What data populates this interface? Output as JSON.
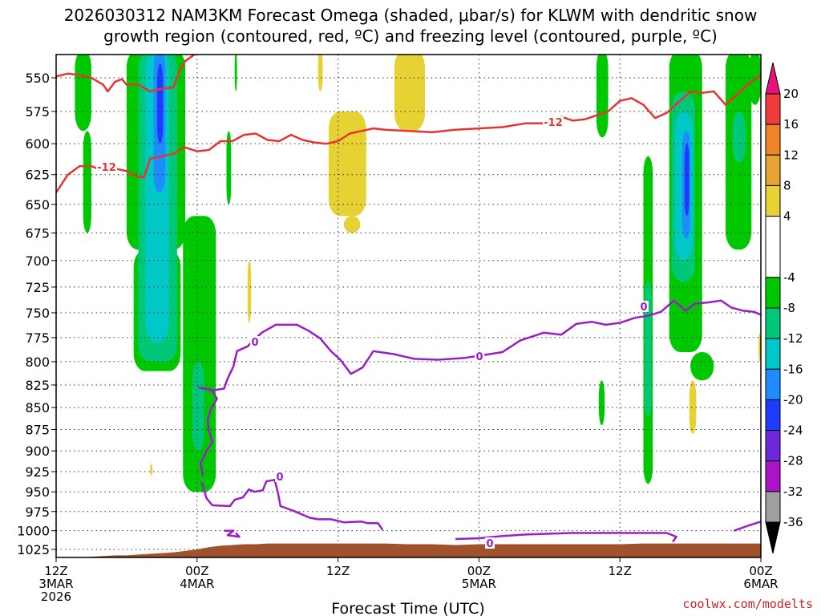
{
  "chart_data": {
    "type": "heatmap",
    "title_line1": "2026030312 NAM3KM Forecast Omega (shaded, μbar/s) for KLWM with dendritic snow",
    "title_line2": "growth region (contoured, red, ºC) and freezing level (contoured, purple, ºC)",
    "xlabel": "Forecast Time (UTC)",
    "credit": "coolwx.com/modelts",
    "x_range_hours": [
      0,
      60
    ],
    "x_ticks": [
      {
        "hour": 0,
        "lines": [
          "12Z",
          "3MAR",
          "2026"
        ]
      },
      {
        "hour": 12,
        "lines": [
          "00Z",
          "4MAR"
        ]
      },
      {
        "hour": 24,
        "lines": [
          "12Z"
        ]
      },
      {
        "hour": 36,
        "lines": [
          "00Z",
          "5MAR"
        ]
      },
      {
        "hour": 48,
        "lines": [
          "12Z"
        ]
      },
      {
        "hour": 60,
        "lines": [
          "00Z",
          "6MAR"
        ]
      }
    ],
    "y_range_hpa": [
      530,
      1040
    ],
    "y_ticks": [
      "550",
      "575",
      "600",
      "625",
      "650",
      "675",
      "700",
      "725",
      "750",
      "775",
      "800",
      "825",
      "850",
      "875",
      "900",
      "925",
      "950",
      "975",
      "1000",
      "1025"
    ],
    "colorbar": {
      "labels": [
        "20",
        "16",
        "12",
        "8",
        "4",
        "-4",
        "-8",
        "-12",
        "-16",
        "-20",
        "-24",
        "-28",
        "-32",
        "-36"
      ],
      "bins": [
        {
          "lo": 16,
          "hi": 20,
          "color": "#f03c3c"
        },
        {
          "lo": 12,
          "hi": 16,
          "color": "#f08228"
        },
        {
          "lo": 8,
          "hi": 12,
          "color": "#e6a532"
        },
        {
          "lo": 4,
          "hi": 8,
          "color": "#e6d232"
        },
        {
          "lo": -4,
          "hi": 4,
          "color": "#ffffff"
        },
        {
          "lo": -8,
          "hi": -4,
          "color": "#00c800"
        },
        {
          "lo": -12,
          "hi": -8,
          "color": "#00c878"
        },
        {
          "lo": -16,
          "hi": -12,
          "color": "#00c8c8"
        },
        {
          "lo": -20,
          "hi": -16,
          "color": "#1e8cff"
        },
        {
          "lo": -24,
          "hi": -20,
          "color": "#1e3cff"
        },
        {
          "lo": -28,
          "hi": -24,
          "color": "#6e28dc"
        },
        {
          "lo": -32,
          "hi": -28,
          "color": "#aa14c8"
        },
        {
          "lo": -36,
          "hi": -32,
          "color": "#a0a0a0"
        }
      ],
      "top_arrow_color": "#e6147a",
      "bottom_arrow_color": "#000000"
    },
    "omega_regions": [
      {
        "color": "#00c800",
        "t": [
          1.6,
          3.0
        ],
        "p": [
          530,
          590
        ]
      },
      {
        "color": "#00c800",
        "t": [
          2.3,
          3.0
        ],
        "p": [
          590,
          675
        ]
      },
      {
        "color": "#00c800",
        "t": [
          6.0,
          11.0
        ],
        "p": [
          530,
          690
        ]
      },
      {
        "color": "#00c800",
        "t": [
          6.6,
          10.6
        ],
        "p": [
          690,
          810
        ]
      },
      {
        "color": "#00c878",
        "t": [
          7.0,
          10.3
        ],
        "p": [
          530,
          800
        ]
      },
      {
        "color": "#00c8c8",
        "t": [
          7.6,
          9.6
        ],
        "p": [
          530,
          780
        ]
      },
      {
        "color": "#1e8cff",
        "t": [
          8.3,
          9.3
        ],
        "p": [
          530,
          640
        ]
      },
      {
        "color": "#1e3cff",
        "t": [
          8.6,
          9.1
        ],
        "p": [
          540,
          600
        ]
      },
      {
        "color": "#00c800",
        "t": [
          10.8,
          13.6
        ],
        "p": [
          660,
          950
        ]
      },
      {
        "color": "#00c878",
        "t": [
          11.6,
          12.6
        ],
        "p": [
          800,
          900
        ]
      },
      {
        "color": "#00c800",
        "t": [
          14.5,
          14.9
        ],
        "p": [
          590,
          650
        ]
      },
      {
        "color": "#00c800",
        "t": [
          15.2,
          15.4
        ],
        "p": [
          530,
          560
        ]
      },
      {
        "color": "#e6d232",
        "t": [
          8.0,
          8.2
        ],
        "p": [
          915,
          930
        ]
      },
      {
        "color": "#e6d232",
        "t": [
          16.3,
          16.6
        ],
        "p": [
          700,
          760
        ]
      },
      {
        "color": "#e6d232",
        "t": [
          22.3,
          22.7
        ],
        "p": [
          530,
          560
        ]
      },
      {
        "color": "#e6d232",
        "t": [
          23.2,
          26.4
        ],
        "p": [
          575,
          660
        ]
      },
      {
        "color": "#e6d232",
        "t": [
          24.5,
          25.9
        ],
        "p": [
          660,
          675
        ]
      },
      {
        "color": "#e6d232",
        "t": [
          28.8,
          31.4
        ],
        "p": [
          530,
          590
        ]
      },
      {
        "color": "#00c800",
        "t": [
          46.0,
          47.0
        ],
        "p": [
          530,
          595
        ]
      },
      {
        "color": "#00c800",
        "t": [
          46.2,
          46.7
        ],
        "p": [
          820,
          870
        ]
      },
      {
        "color": "#00c800",
        "t": [
          50.0,
          50.8
        ],
        "p": [
          610,
          940
        ]
      },
      {
        "color": "#00c878",
        "t": [
          50.1,
          50.7
        ],
        "p": [
          720,
          860
        ]
      },
      {
        "color": "#00c800",
        "t": [
          52.2,
          55.0
        ],
        "p": [
          530,
          790
        ]
      },
      {
        "color": "#00c800",
        "t": [
          54.0,
          56.0
        ],
        "p": [
          790,
          820
        ]
      },
      {
        "color": "#00c878",
        "t": [
          52.4,
          54.4
        ],
        "p": [
          560,
          720
        ]
      },
      {
        "color": "#00c8c8",
        "t": [
          52.7,
          54.2
        ],
        "p": [
          575,
          700
        ]
      },
      {
        "color": "#1e8cff",
        "t": [
          53.3,
          54.0
        ],
        "p": [
          590,
          680
        ]
      },
      {
        "color": "#1e3cff",
        "t": [
          53.5,
          53.9
        ],
        "p": [
          600,
          660
        ]
      },
      {
        "color": "#e6d232",
        "t": [
          53.9,
          54.5
        ],
        "p": [
          820,
          880
        ]
      },
      {
        "color": "#00c800",
        "t": [
          57.0,
          59.2
        ],
        "p": [
          530,
          690
        ]
      },
      {
        "color": "#00c878",
        "t": [
          57.6,
          58.7
        ],
        "p": [
          575,
          615
        ]
      },
      {
        "color": "#00c800",
        "t": [
          59.0,
          60.0
        ],
        "p": [
          530,
          570
        ]
      },
      {
        "color": "#e6d232",
        "t": [
          59.8,
          60.0
        ],
        "p": [
          770,
          800
        ]
      }
    ],
    "dgz_contour": {
      "label": "-12",
      "points": [
        [
          0,
          549
        ],
        [
          1,
          547
        ],
        [
          2,
          548
        ],
        [
          3,
          550
        ],
        [
          4,
          555
        ],
        [
          4.4,
          560
        ],
        [
          5,
          553
        ],
        [
          5.6,
          551
        ],
        [
          6,
          555
        ],
        [
          7,
          555
        ],
        [
          8,
          560
        ],
        [
          9,
          558
        ],
        [
          10,
          557
        ],
        [
          10.5,
          545
        ],
        [
          11,
          538
        ],
        [
          12,
          532
        ],
        [
          12.5,
          530
        ]
      ],
      "points2": [
        [
          0,
          640
        ],
        [
          1,
          625
        ],
        [
          2,
          618
        ],
        [
          3,
          618
        ],
        [
          4,
          622
        ],
        [
          5,
          620
        ],
        [
          6,
          622
        ],
        [
          7,
          627
        ],
        [
          7.5,
          627
        ],
        [
          8,
          612
        ],
        [
          9,
          610
        ],
        [
          10,
          608
        ],
        [
          10.5,
          605
        ],
        [
          11,
          603
        ],
        [
          12,
          606
        ],
        [
          13,
          605
        ],
        [
          14,
          598
        ],
        [
          15,
          598
        ],
        [
          16,
          593
        ],
        [
          17,
          592
        ],
        [
          18,
          597
        ],
        [
          19,
          598
        ],
        [
          20,
          593
        ],
        [
          21,
          597
        ],
        [
          22,
          599
        ],
        [
          23,
          600
        ],
        [
          24,
          598
        ],
        [
          25,
          592
        ],
        [
          26,
          590
        ],
        [
          27,
          588
        ],
        [
          28,
          589
        ],
        [
          30,
          590
        ],
        [
          32,
          591
        ],
        [
          34,
          589
        ],
        [
          36,
          588
        ],
        [
          38,
          587
        ],
        [
          40,
          584
        ],
        [
          42,
          584
        ],
        [
          43,
          579
        ],
        [
          44,
          582
        ],
        [
          45,
          581
        ],
        [
          46,
          578
        ],
        [
          47,
          575
        ],
        [
          48,
          567
        ],
        [
          49,
          565
        ],
        [
          50,
          570
        ],
        [
          51,
          580
        ],
        [
          52,
          576
        ],
        [
          53,
          568
        ],
        [
          54,
          560
        ],
        [
          55,
          561
        ],
        [
          56,
          560
        ],
        [
          57,
          570
        ],
        [
          58,
          562
        ],
        [
          59,
          554
        ],
        [
          60,
          548
        ]
      ]
    },
    "freezing_contour": {
      "label": "0",
      "points": [
        [
          12.5,
          930
        ],
        [
          12.3,
          915
        ],
        [
          12.8,
          900
        ],
        [
          13.3,
          890
        ],
        [
          13.0,
          876
        ],
        [
          12.9,
          864
        ],
        [
          13.2,
          851
        ],
        [
          13.7,
          840
        ],
        [
          13.2,
          830
        ],
        [
          12.2,
          828
        ],
        [
          13.3,
          831
        ],
        [
          14.3,
          829
        ],
        [
          14.6,
          818
        ],
        [
          15.1,
          805
        ],
        [
          15.4,
          789
        ],
        [
          16.3,
          784
        ],
        [
          17.5,
          770
        ],
        [
          18.7,
          762
        ],
        [
          20.5,
          762
        ],
        [
          21.5,
          768
        ],
        [
          22.5,
          776
        ],
        [
          23.4,
          789
        ],
        [
          24.2,
          798
        ],
        [
          25.1,
          813
        ],
        [
          26.1,
          806
        ],
        [
          27.0,
          789
        ],
        [
          28.7,
          792
        ],
        [
          30.5,
          797
        ],
        [
          32.5,
          798
        ],
        [
          34.8,
          796
        ],
        [
          36.4,
          793
        ],
        [
          38.0,
          790
        ],
        [
          39.5,
          778
        ],
        [
          41.5,
          770
        ],
        [
          43.0,
          772
        ],
        [
          44.3,
          761
        ],
        [
          45.6,
          759
        ],
        [
          46.8,
          762
        ],
        [
          48.0,
          760
        ],
        [
          49.3,
          755
        ],
        [
          50.4,
          753
        ],
        [
          51.5,
          749
        ],
        [
          52.6,
          738
        ],
        [
          53.6,
          748
        ],
        [
          54.4,
          741
        ],
        [
          55.4,
          740
        ],
        [
          56.6,
          738
        ],
        [
          57.5,
          745
        ],
        [
          58.5,
          748
        ],
        [
          59.4,
          749
        ],
        [
          60.0,
          752
        ]
      ],
      "points_low": [
        [
          12.4,
          938
        ],
        [
          12.8,
          958
        ],
        [
          13.3,
          967
        ],
        [
          14.8,
          968
        ],
        [
          15.2,
          960
        ],
        [
          15.9,
          957
        ],
        [
          16.4,
          947
        ],
        [
          16.9,
          950
        ],
        [
          17.6,
          948
        ],
        [
          17.9,
          937
        ],
        [
          18.6,
          935
        ],
        [
          18.9,
          952
        ],
        [
          19.1,
          968
        ],
        [
          20.2,
          974
        ],
        [
          21.6,
          983
        ],
        [
          22.3,
          985
        ],
        [
          23.4,
          985
        ],
        [
          24.5,
          989
        ],
        [
          26.0,
          988
        ],
        [
          26.5,
          990
        ],
        [
          27.4,
          990
        ],
        [
          27.8,
          999
        ]
      ],
      "points_sfc": [
        [
          34.0,
          1011
        ],
        [
          36.0,
          1010
        ],
        [
          38.0,
          1007
        ],
        [
          40.0,
          1005
        ],
        [
          42.0,
          1004
        ],
        [
          44.0,
          1003
        ],
        [
          46.0,
          1003
        ],
        [
          48.0,
          1003
        ],
        [
          50.0,
          1003
        ],
        [
          52.0,
          1003
        ],
        [
          52.8,
          1008
        ],
        [
          52.5,
          1015
        ]
      ],
      "points_sfc2": [
        [
          57.7,
          1000
        ],
        [
          59.0,
          993
        ],
        [
          60.0,
          988
        ]
      ],
      "points_blip": [
        [
          14.3,
          1000
        ],
        [
          15.1,
          1000
        ],
        [
          14.6,
          1006
        ],
        [
          15.6,
          1008
        ],
        [
          15.3,
          1003
        ]
      ]
    },
    "terrain": {
      "color": "#a0522d",
      "points": [
        [
          0,
          1040
        ],
        [
          1,
          1037
        ],
        [
          2,
          1036
        ],
        [
          3,
          1035
        ],
        [
          4,
          1034
        ],
        [
          5,
          1033
        ],
        [
          6,
          1033
        ],
        [
          7,
          1032
        ],
        [
          8,
          1031
        ],
        [
          9,
          1030
        ],
        [
          10,
          1029
        ],
        [
          11,
          1027
        ],
        [
          12,
          1025
        ],
        [
          13,
          1022
        ],
        [
          14,
          1020
        ],
        [
          15,
          1019
        ],
        [
          16,
          1018
        ],
        [
          17,
          1018
        ],
        [
          18,
          1017
        ],
        [
          20,
          1017
        ],
        [
          22,
          1017
        ],
        [
          24,
          1017
        ],
        [
          26,
          1017
        ],
        [
          28,
          1017
        ],
        [
          30,
          1018
        ],
        [
          32,
          1018
        ],
        [
          34,
          1019
        ],
        [
          36,
          1018
        ],
        [
          38,
          1018
        ],
        [
          40,
          1018
        ],
        [
          42,
          1018
        ],
        [
          44,
          1018
        ],
        [
          46,
          1018
        ],
        [
          48,
          1018
        ],
        [
          50,
          1017
        ],
        [
          52,
          1017
        ],
        [
          54,
          1017
        ],
        [
          56,
          1017
        ],
        [
          58,
          1017
        ],
        [
          60,
          1017
        ]
      ]
    }
  }
}
